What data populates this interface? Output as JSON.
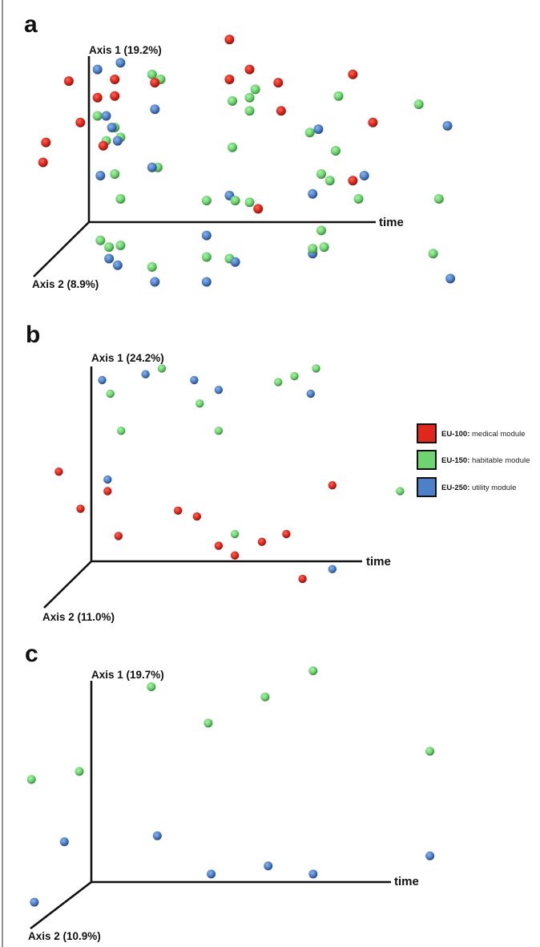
{
  "chart_data": [
    {
      "type": "scatter",
      "panel": "a",
      "projection": "3D PCoA (time, Axis 1, Axis 2); values in projected units, 100 = axis length",
      "axes": {
        "axis1": "Axis 1 (19.2%)",
        "axis2": "Axis 2 (8.9%)",
        "time": "time"
      },
      "points": [
        [
          49,
          110,
          "EU-100"
        ],
        [
          56,
          92,
          "EU-100"
        ],
        [
          49,
          86,
          "EU-100"
        ],
        [
          58,
          80,
          "EU-150"
        ],
        [
          56,
          75,
          "EU-150"
        ],
        [
          50,
          73,
          "EU-150"
        ],
        [
          56,
          67,
          "EU-150"
        ],
        [
          50,
          45,
          "EU-150"
        ],
        [
          3,
          92,
          "EU-250"
        ],
        [
          11,
          96,
          "EU-250"
        ],
        [
          -7,
          85,
          "EU-100"
        ],
        [
          9,
          86,
          "EU-100"
        ],
        [
          22,
          89,
          "EU-150"
        ],
        [
          25,
          86,
          "EU-150"
        ],
        [
          23,
          84,
          "EU-100"
        ],
        [
          3,
          75,
          "EU-100"
        ],
        [
          9,
          76,
          "EU-100"
        ],
        [
          23,
          68,
          "EU-250"
        ],
        [
          3,
          64,
          "EU-150"
        ],
        [
          6,
          64,
          "EU-250"
        ],
        [
          -3,
          60,
          "EU-100"
        ],
        [
          9,
          57,
          "EU-150"
        ],
        [
          8,
          57,
          "EU-250"
        ],
        [
          6,
          49,
          "EU-150"
        ],
        [
          5,
          46,
          "EU-100"
        ],
        [
          11,
          51,
          "EU-150"
        ],
        [
          10,
          49,
          "EU-250"
        ],
        [
          -15,
          48,
          "EU-100"
        ],
        [
          -16,
          36,
          "EU-100"
        ],
        [
          24,
          33,
          "EU-150"
        ],
        [
          22,
          33,
          "EU-250"
        ],
        [
          4,
          28,
          "EU-250"
        ],
        [
          9,
          29,
          "EU-150"
        ],
        [
          11,
          14,
          "EU-150"
        ],
        [
          41,
          13,
          "EU-150"
        ],
        [
          49,
          16,
          "EU-250"
        ],
        [
          51,
          13,
          "EU-150"
        ],
        [
          56,
          12,
          "EU-150"
        ],
        [
          59,
          8,
          "EU-100"
        ],
        [
          4,
          -11,
          "EU-150"
        ],
        [
          7,
          -15,
          "EU-150"
        ],
        [
          11,
          -14,
          "EU-150"
        ],
        [
          7,
          -22,
          "EU-250"
        ],
        [
          10,
          -26,
          "EU-250"
        ],
        [
          22,
          -27,
          "EU-150"
        ],
        [
          23,
          -36,
          "EU-250"
        ],
        [
          41,
          -8,
          "EU-250"
        ],
        [
          41,
          -21,
          "EU-150"
        ],
        [
          41,
          -36,
          "EU-250"
        ],
        [
          49,
          -22,
          "EU-150"
        ],
        [
          51,
          -24,
          "EU-250"
        ],
        [
          66,
          84,
          "EU-100"
        ],
        [
          67,
          67,
          "EU-100"
        ],
        [
          92,
          89,
          "EU-100"
        ],
        [
          87,
          76,
          "EU-150"
        ],
        [
          115,
          71,
          "EU-150"
        ],
        [
          99,
          60,
          "EU-100"
        ],
        [
          125,
          58,
          "EU-250"
        ],
        [
          77,
          54,
          "EU-150"
        ],
        [
          80,
          56,
          "EU-250"
        ],
        [
          86,
          43,
          "EU-150"
        ],
        [
          81,
          29,
          "EU-150"
        ],
        [
          84,
          25,
          "EU-150"
        ],
        [
          92,
          25,
          "EU-100"
        ],
        [
          96,
          28,
          "EU-250"
        ],
        [
          78,
          17,
          "EU-250"
        ],
        [
          94,
          14,
          "EU-150"
        ],
        [
          122,
          14,
          "EU-150"
        ],
        [
          81,
          -5,
          "EU-150"
        ],
        [
          78,
          -19,
          "EU-250"
        ],
        [
          78,
          -16,
          "EU-150"
        ],
        [
          82,
          -15,
          "EU-150"
        ],
        [
          120,
          -19,
          "EU-150"
        ],
        [
          126,
          -34,
          "EU-250"
        ]
      ]
    },
    {
      "type": "scatter",
      "panel": "b",
      "projection": "3D PCoA (time, Axis 1, Axis 2); values in projected units, 100 = axis length",
      "axes": {
        "axis1": "Axis 1 (24.2%)",
        "axis2": "Axis 2 (11.0%)",
        "time": "time"
      },
      "points": [
        [
          4,
          93,
          "EU-250"
        ],
        [
          20,
          96,
          "EU-250"
        ],
        [
          26,
          99,
          "EU-150"
        ],
        [
          38,
          93,
          "EU-250"
        ],
        [
          47,
          88,
          "EU-250"
        ],
        [
          7,
          86,
          "EU-150"
        ],
        [
          40,
          81,
          "EU-150"
        ],
        [
          11,
          67,
          "EU-150"
        ],
        [
          47,
          67,
          "EU-150"
        ],
        [
          -12,
          46,
          "EU-100"
        ],
        [
          6,
          42,
          "EU-250"
        ],
        [
          6,
          36,
          "EU-100"
        ],
        [
          -4,
          27,
          "EU-100"
        ],
        [
          32,
          26,
          "EU-100"
        ],
        [
          39,
          23,
          "EU-100"
        ],
        [
          10,
          13,
          "EU-100"
        ],
        [
          53,
          14,
          "EU-150"
        ],
        [
          47,
          8,
          "EU-100"
        ],
        [
          53,
          3,
          "EU-100"
        ],
        [
          63,
          10,
          "EU-100"
        ],
        [
          69,
          92,
          "EU-150"
        ],
        [
          75,
          95,
          "EU-150"
        ],
        [
          83,
          99,
          "EU-150"
        ],
        [
          81,
          86,
          "EU-250"
        ],
        [
          89,
          39,
          "EU-100"
        ],
        [
          114,
          36,
          "EU-150"
        ],
        [
          72,
          14,
          "EU-100"
        ],
        [
          89,
          -4,
          "EU-250"
        ],
        [
          78,
          -9,
          "EU-100"
        ]
      ]
    },
    {
      "type": "scatter",
      "panel": "c",
      "projection": "3D PCoA (time, Axis 1, Axis 2); values in projected units, 100 = axis length",
      "axes": {
        "axis1": "Axis 1 (19.7%)",
        "axis2": "Axis 2 (10.9%)",
        "time": "time"
      },
      "points": [
        [
          20,
          97,
          "EU-150"
        ],
        [
          39,
          79,
          "EU-150"
        ],
        [
          -4,
          55,
          "EU-150"
        ],
        [
          -20,
          51,
          "EU-150"
        ],
        [
          -9,
          20,
          "EU-250"
        ],
        [
          22,
          23,
          "EU-250"
        ],
        [
          40,
          4,
          "EU-250"
        ],
        [
          -19,
          -10,
          "EU-250"
        ],
        [
          74,
          105,
          "EU-150"
        ],
        [
          58,
          92,
          "EU-150"
        ],
        [
          113,
          65,
          "EU-150"
        ],
        [
          59,
          8,
          "EU-250"
        ],
        [
          74,
          4,
          "EU-250"
        ],
        [
          113,
          13,
          "EU-250"
        ]
      ]
    }
  ],
  "panels": {
    "a": {
      "letter": "a",
      "axis1": "Axis 1 (19.2%)",
      "axis2": "Axis 2 (8.9%)",
      "time": "time"
    },
    "b": {
      "letter": "b",
      "axis1": "Axis 1 (24.2%)",
      "axis2": "Axis 2 (11.0%)",
      "time": "time"
    },
    "c": {
      "letter": "c",
      "axis1": "Axis 1 (19.7%)",
      "axis2": "Axis 2 (10.9%)",
      "time": "time"
    }
  },
  "legend": {
    "placement": "right of panel b",
    "items": [
      {
        "key": "EU-100:",
        "label": " medical module",
        "color": "#e0271c"
      },
      {
        "key": "EU-150:",
        "label": " habitable module",
        "color": "#6ed46f"
      },
      {
        "key": "EU-250:",
        "label": " utility module",
        "color": "#4c80c8"
      }
    ]
  },
  "colors": {
    "EU-100": "#e0271c",
    "EU-150": "#6ed46f",
    "EU-250": "#4c80c8"
  }
}
